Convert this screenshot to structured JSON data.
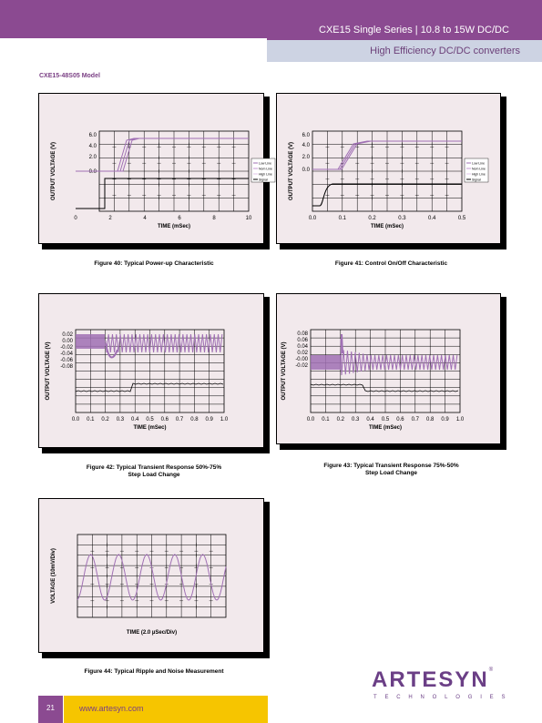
{
  "header": {
    "title": "CXE15 Single Series   |   10.8 to 15W DC/DC",
    "subtitle": "High Efficiency DC/DC converters"
  },
  "model_label": "CXE15-48S05 Model",
  "figures": {
    "fig40": {
      "caption": "Figure 40: Typical Power-up Characteristic",
      "ylabel": "OUTPUT VOLTAGE (V)",
      "xlabel": "TIME (mSec)",
      "yticks": [
        "6.0",
        "4.0",
        "2.0",
        "0.0"
      ],
      "xticks": [
        "0",
        "2",
        "4",
        "6",
        "8",
        "10"
      ],
      "legend": [
        "Low Line",
        "Nom Line",
        "High Line",
        "Signal"
      ]
    },
    "fig41": {
      "caption": "Figure 41: Control On/Off Characteristic",
      "ylabel": "OUTPUT VOLTAGE (V)",
      "xlabel": "TIME (mSec)",
      "yticks": [
        "6.0",
        "4.0",
        "2.0",
        "0.0"
      ],
      "xticks": [
        "0.0",
        "0.1",
        "0.2",
        "0.3",
        "0.4",
        "0.5"
      ],
      "legend": [
        "Low Line",
        "Nom Line",
        "High Line",
        "Signal"
      ]
    },
    "fig42": {
      "caption": "Figure 42: Typical Transient Response 50%-75%",
      "caption2": "Step Load Change",
      "ylabel": "OUTPUT VOLTAGE (V)",
      "xlabel": "TIME (mSec)",
      "yticks": [
        "0.02",
        "0.00",
        "-0.02",
        "-0.04",
        "-0.06",
        "-0.08"
      ],
      "xticks": [
        "0.0",
        "0.1",
        "0.2",
        "0.3",
        "0.4",
        "0.5",
        "0.6",
        "0.7",
        "0.8",
        "0.9",
        "1.0"
      ]
    },
    "fig43": {
      "caption": "Figure 43: Typical Transient Response 75%-50%",
      "caption2": "Step Load Change",
      "ylabel": "OUTPUT VOLTAGE (V)",
      "xlabel": "TIME (mSec)",
      "yticks": [
        "0.08",
        "0.06",
        "0.04",
        "0.02",
        "-0.00",
        "-0.02"
      ],
      "xticks": [
        "0.0",
        "0.1",
        "0.2",
        "0.3",
        "0.4",
        "0.5",
        "0.6",
        "0.7",
        "0.8",
        "0.9",
        "1.0"
      ]
    },
    "fig44": {
      "caption": "Figure 44: Typical Ripple and Noise Measurement",
      "ylabel": "VOLTAGE (10mV/Div)",
      "xlabel": "TIME (2.0 µSec/Div)"
    }
  },
  "footer": {
    "page_number": "21",
    "url": "www.artesyn.com"
  },
  "logo": {
    "word": "ARTESYN",
    "reg": "®",
    "sub": "TECHNOLOGIES"
  },
  "colors": {
    "brand_purple": "#8b4a91",
    "trace_purple": "#a070b4",
    "panel_bg": "#f2e9ec",
    "footer_yellow": "#f6c500"
  },
  "icons": [
    "artesyn-logo"
  ]
}
